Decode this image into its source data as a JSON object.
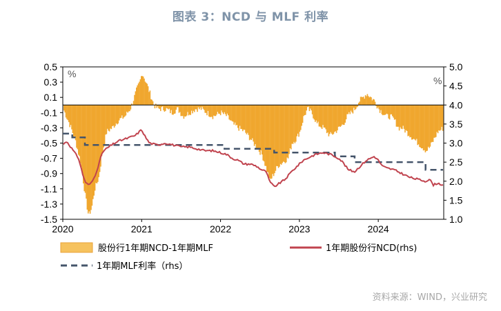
{
  "title": "图表 3：NCD 与 MLF 利率",
  "source": "资料来源：WIND，兴业研究",
  "colors": {
    "spread": "#f0a72e",
    "ncd": "#c0434e",
    "mlf": "#44546a"
  },
  "chart_data": {
    "type": "area",
    "title": "图表 3：NCD 与 MLF 利率",
    "left_axis": {
      "unit": "%",
      "ylim": [
        -1.5,
        0.5
      ],
      "ticks": [
        "0.5",
        "0.3",
        "0.1",
        "-0.1",
        "-0.3",
        "-0.5",
        "-0.7",
        "-0.9",
        "-1.1",
        "-1.3",
        "-1.5"
      ]
    },
    "right_axis": {
      "unit": "%",
      "ylim": [
        1.0,
        5.0
      ],
      "ticks": [
        "5.0",
        "4.5",
        "4.0",
        "3.5",
        "3.0",
        "2.5",
        "2.0",
        "1.5",
        "1.0"
      ]
    },
    "x_axis": {
      "ticks": [
        "2020",
        "2021",
        "2022",
        "2023",
        "2024"
      ],
      "range": [
        "2020-01",
        "2024-10"
      ]
    },
    "legend": [
      "股份行1年期NCD-1年期MLF",
      "1年期股份行NCD(rhs)",
      "1年期MLF利率（rhs）"
    ],
    "series": [
      {
        "name": "股份行1年期NCD-1年期MLF",
        "axis": "left",
        "style": "bars",
        "x": [
          2020.0,
          2020.08,
          2020.15,
          2020.22,
          2020.28,
          2020.32,
          2020.36,
          2020.4,
          2020.45,
          2020.5,
          2020.55,
          2020.62,
          2020.7,
          2020.78,
          2020.85,
          2020.9,
          2020.93,
          2020.97,
          2021.0,
          2021.05,
          2021.1,
          2021.15,
          2021.2,
          2021.25,
          2021.3,
          2021.38,
          2021.45,
          2021.52,
          2021.6,
          2021.68,
          2021.75,
          2021.82,
          2021.9,
          2022.0,
          2022.08,
          2022.15,
          2022.22,
          2022.3,
          2022.38,
          2022.45,
          2022.52,
          2022.58,
          2022.62,
          2022.67,
          2022.72,
          2022.78,
          2022.85,
          2022.9,
          2022.95,
          2023.0,
          2023.05,
          2023.1,
          2023.15,
          2023.22,
          2023.3,
          2023.38,
          2023.45,
          2023.5,
          2023.55,
          2023.6,
          2023.65,
          2023.7,
          2023.75,
          2023.8,
          2023.85,
          2023.9,
          2023.95,
          2024.0,
          2024.05,
          2024.1,
          2024.15,
          2024.2,
          2024.25,
          2024.3,
          2024.35,
          2024.4,
          2024.45,
          2024.5,
          2024.55,
          2024.6,
          2024.65,
          2024.7,
          2024.75,
          2024.82
        ],
        "values": [
          -0.05,
          -0.25,
          -0.45,
          -0.75,
          -1.2,
          -1.45,
          -1.35,
          -1.1,
          -0.95,
          -0.6,
          -0.35,
          -0.3,
          -0.2,
          -0.15,
          -0.05,
          0.1,
          0.2,
          0.3,
          0.42,
          0.3,
          0.15,
          0.0,
          -0.05,
          -0.05,
          -0.05,
          -0.1,
          -0.05,
          -0.15,
          -0.1,
          -0.05,
          -0.05,
          -0.1,
          -0.15,
          -0.1,
          -0.15,
          -0.25,
          -0.3,
          -0.35,
          -0.45,
          -0.55,
          -0.65,
          -0.85,
          -1.0,
          -0.9,
          -0.8,
          -0.75,
          -0.7,
          -0.5,
          -0.45,
          -0.35,
          -0.15,
          -0.05,
          -0.1,
          -0.25,
          -0.3,
          -0.4,
          -0.35,
          -0.3,
          -0.25,
          -0.15,
          -0.1,
          -0.05,
          0.05,
          0.1,
          0.15,
          0.1,
          0.05,
          -0.05,
          -0.1,
          -0.15,
          -0.15,
          -0.2,
          -0.3,
          -0.3,
          -0.35,
          -0.4,
          -0.45,
          -0.5,
          -0.55,
          -0.6,
          -0.55,
          -0.45,
          -0.35,
          -0.3
        ]
      },
      {
        "name": "1年期股份行NCD(rhs)",
        "axis": "right",
        "style": "line",
        "x": [
          2020.0,
          2020.05,
          2020.1,
          2020.15,
          2020.2,
          2020.25,
          2020.28,
          2020.32,
          2020.36,
          2020.4,
          2020.45,
          2020.5,
          2020.55,
          2020.62,
          2020.7,
          2020.78,
          2020.85,
          2020.92,
          2020.97,
          2021.0,
          2021.05,
          2021.1,
          2021.2,
          2021.3,
          2021.4,
          2021.5,
          2021.6,
          2021.7,
          2021.8,
          2021.9,
          2022.0,
          2022.08,
          2022.15,
          2022.22,
          2022.3,
          2022.38,
          2022.45,
          2022.52,
          2022.58,
          2022.62,
          2022.68,
          2022.75,
          2022.82,
          2022.9,
          2022.95,
          2023.0,
          2023.05,
          2023.1,
          2023.2,
          2023.3,
          2023.4,
          2023.5,
          2023.55,
          2023.62,
          2023.7,
          2023.75,
          2023.8,
          2023.85,
          2023.9,
          2023.95,
          2024.0,
          2024.05,
          2024.1,
          2024.2,
          2024.3,
          2024.4,
          2024.5,
          2024.6,
          2024.65,
          2024.7,
          2024.75,
          2024.82
        ],
        "values": [
          2.95,
          3.05,
          2.9,
          2.75,
          2.6,
          2.2,
          2.0,
          1.9,
          1.95,
          2.1,
          2.4,
          2.75,
          2.85,
          2.95,
          3.05,
          3.1,
          3.15,
          3.2,
          3.3,
          3.35,
          3.15,
          3.0,
          2.95,
          3.0,
          2.95,
          2.9,
          2.9,
          2.85,
          2.8,
          2.8,
          2.75,
          2.7,
          2.6,
          2.55,
          2.45,
          2.45,
          2.4,
          2.3,
          2.25,
          2.0,
          1.85,
          1.95,
          2.05,
          2.25,
          2.35,
          2.45,
          2.55,
          2.6,
          2.7,
          2.75,
          2.7,
          2.6,
          2.5,
          2.3,
          2.25,
          2.35,
          2.45,
          2.55,
          2.6,
          2.65,
          2.55,
          2.4,
          2.35,
          2.3,
          2.2,
          2.1,
          2.05,
          2.0,
          2.05,
          1.9,
          1.95,
          1.9
        ]
      },
      {
        "name": "1年期MLF利率（rhs）",
        "axis": "right",
        "style": "dashed-step",
        "x": [
          2020.0,
          2020.12,
          2020.28,
          2020.75,
          2022.05,
          2022.68,
          2023.45,
          2023.7,
          2024.6,
          2024.82
        ],
        "values": [
          3.25,
          3.15,
          2.95,
          2.95,
          2.85,
          2.75,
          2.65,
          2.5,
          2.3,
          2.3
        ]
      }
    ]
  }
}
